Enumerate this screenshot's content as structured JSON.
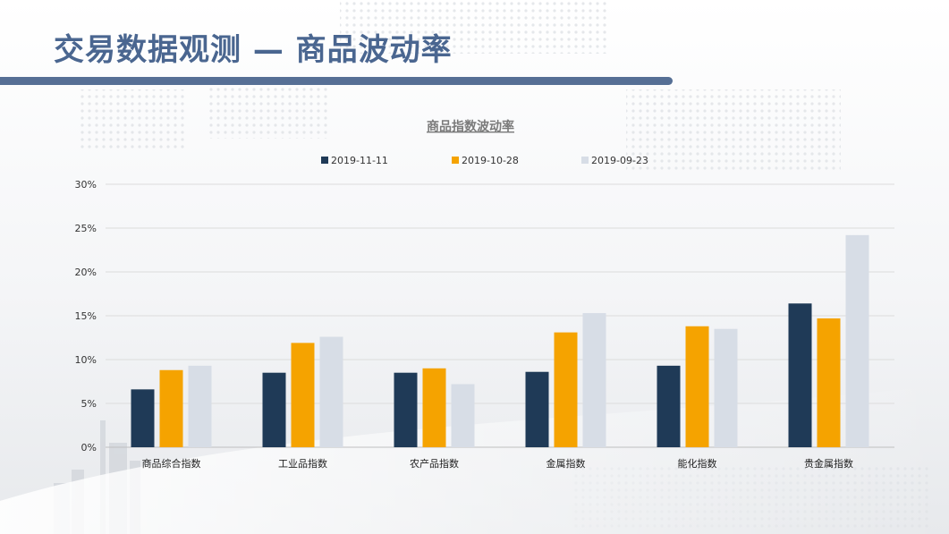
{
  "slide": {
    "title": "交易数据观测 — 商品波动率"
  },
  "chart_data": {
    "type": "bar",
    "title": "商品指数波动率",
    "categories": [
      "商品综合指数",
      "工业品指数",
      "农产品指数",
      "金属指数",
      "能化指数",
      "贵金属指数"
    ],
    "series": [
      {
        "name": "2019-11-11",
        "color": "#1f3a57",
        "values": [
          6.6,
          8.5,
          8.5,
          8.6,
          9.3,
          16.4
        ]
      },
      {
        "name": "2019-10-28",
        "color": "#f5a300",
        "values": [
          8.8,
          11.9,
          9.0,
          13.1,
          13.8,
          14.7
        ]
      },
      {
        "name": "2019-09-23",
        "color": "#d7dde6",
        "values": [
          9.3,
          12.6,
          7.2,
          15.3,
          13.5,
          24.2
        ]
      }
    ],
    "yticks": [
      "0%",
      "5%",
      "10%",
      "15%",
      "20%",
      "25%",
      "30%"
    ],
    "ylim": [
      0,
      30
    ],
    "grid": true,
    "legend_position": "top"
  }
}
